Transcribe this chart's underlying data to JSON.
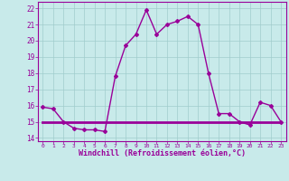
{
  "xlabel": "Windchill (Refroidissement éolien,°C)",
  "x_values": [
    0,
    1,
    2,
    3,
    4,
    5,
    6,
    7,
    8,
    9,
    10,
    11,
    12,
    13,
    14,
    15,
    16,
    17,
    18,
    19,
    20,
    21,
    22,
    23
  ],
  "y_main": [
    15.9,
    15.8,
    15.0,
    14.6,
    14.5,
    14.5,
    14.4,
    17.8,
    19.7,
    20.4,
    21.9,
    20.4,
    21.0,
    21.2,
    21.5,
    21.0,
    18.0,
    15.5,
    15.5,
    15.0,
    14.8,
    16.2,
    16.0,
    15.0
  ],
  "y_flat": [
    15.0,
    15.0,
    15.0,
    15.0,
    15.0,
    15.0,
    15.0,
    15.0,
    15.0,
    15.0,
    15.0,
    15.0,
    15.0,
    15.0,
    15.0,
    15.0,
    15.0,
    15.0,
    15.0,
    15.0,
    15.0,
    15.0,
    15.0,
    15.0
  ],
  "line_color": "#990099",
  "bg_color": "#c8eaea",
  "grid_color": "#a0cccc",
  "ylim": [
    13.8,
    22.4
  ],
  "yticks": [
    14,
    15,
    16,
    17,
    18,
    19,
    20,
    21,
    22
  ],
  "xlim": [
    -0.5,
    23.5
  ]
}
